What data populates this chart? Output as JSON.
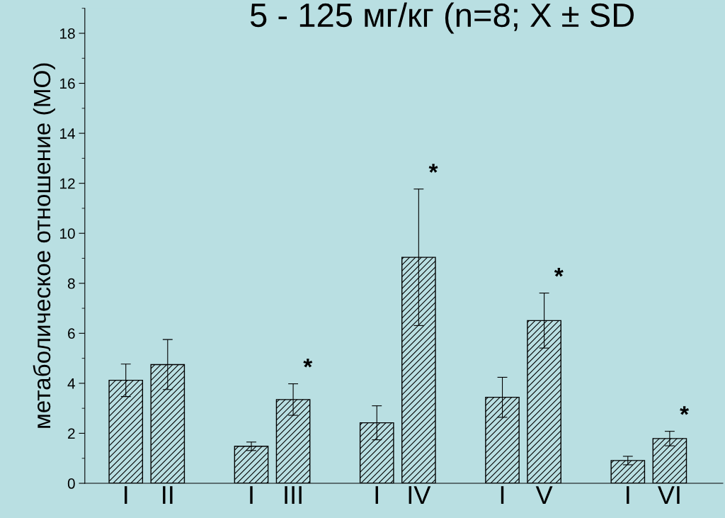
{
  "chart_data": {
    "type": "bar",
    "title": "5 - 125 мг/кг (n=8; X ± SD",
    "ylabel": "метаболическое отношение (МО)",
    "categories": [
      "I",
      "II",
      null,
      "I",
      "III",
      null,
      "I",
      "IV",
      null,
      "I",
      "V",
      null,
      "I",
      "VI"
    ],
    "values": [
      4.12,
      4.75,
      null,
      1.48,
      3.35,
      null,
      2.42,
      9.04,
      null,
      3.44,
      6.51,
      null,
      0.91,
      1.79
    ],
    "errors": [
      0.65,
      1.0,
      null,
      0.17,
      0.63,
      null,
      0.68,
      2.73,
      null,
      0.8,
      1.1,
      null,
      0.17,
      0.29
    ],
    "ylim": [
      0,
      19
    ],
    "yticks": [
      0,
      2,
      4,
      6,
      8,
      10,
      12,
      14,
      16,
      18
    ],
    "grid": false,
    "legend": false,
    "annotations": [
      "*",
      "*",
      "*",
      "*"
    ]
  }
}
